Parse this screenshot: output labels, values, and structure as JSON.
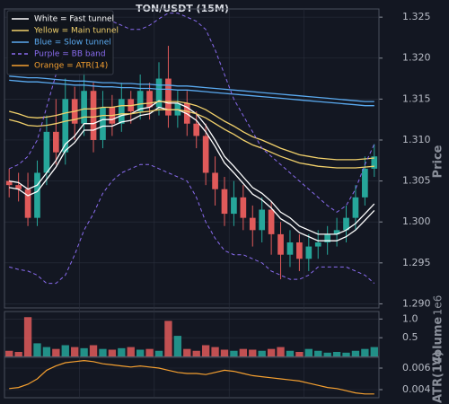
{
  "chart_data": [
    {
      "type": "candlestick",
      "title": "TON/USDT (15M)",
      "ylabel": "Price",
      "up_color": "#26a69a",
      "down_color": "#e05a5a",
      "ylim": [
        1.2895,
        1.326
      ],
      "yticks": [
        {
          "value": 1.29,
          "label": "1.290"
        },
        1.295,
        {
          "value": 1.3,
          "label": "1.300"
        },
        1.305,
        {
          "value": 1.31,
          "label": "1.310"
        },
        1.315,
        {
          "value": 1.32,
          "label": "1.320"
        },
        1.325
      ],
      "grid": true,
      "legend": "upper left",
      "open": [
        1.305,
        1.3045,
        1.304,
        1.3005,
        1.306,
        1.311,
        1.3085,
        1.315,
        1.312,
        1.316,
        1.31,
        1.314,
        1.312,
        1.315,
        1.3135,
        1.316,
        1.314,
        1.3175,
        1.313,
        1.3145,
        1.312,
        1.3105,
        1.306,
        1.304,
        1.301,
        1.303,
        1.3005,
        1.299,
        1.3015,
        1.2985,
        1.296,
        1.2975,
        1.2955,
        1.297,
        1.2975,
        1.2985,
        1.299,
        1.3005,
        1.303,
        1.3065
      ],
      "high": [
        1.3065,
        1.306,
        1.306,
        1.3075,
        1.313,
        1.315,
        1.3175,
        1.3165,
        1.3185,
        1.317,
        1.316,
        1.3155,
        1.317,
        1.316,
        1.318,
        1.317,
        1.3195,
        1.3215,
        1.316,
        1.316,
        1.3135,
        1.312,
        1.308,
        1.3055,
        1.305,
        1.3045,
        1.302,
        1.303,
        1.3025,
        1.3,
        1.299,
        1.2985,
        1.2985,
        1.299,
        1.2995,
        1.3005,
        1.302,
        1.3045,
        1.308,
        1.3095
      ],
      "low": [
        1.303,
        1.3025,
        1.2995,
        1.2995,
        1.3045,
        1.307,
        1.307,
        1.31,
        1.3105,
        1.3085,
        1.309,
        1.3105,
        1.311,
        1.312,
        1.3125,
        1.3125,
        1.313,
        1.3115,
        1.3115,
        1.3105,
        1.309,
        1.3045,
        1.302,
        1.2995,
        1.2995,
        1.299,
        1.297,
        1.2975,
        1.296,
        1.293,
        1.2945,
        1.294,
        1.294,
        1.2955,
        1.296,
        1.297,
        1.2975,
        1.299,
        1.302,
        1.3055
      ],
      "close": [
        1.3045,
        1.304,
        1.3005,
        1.306,
        1.311,
        1.3085,
        1.315,
        1.312,
        1.316,
        1.31,
        1.314,
        1.312,
        1.315,
        1.3135,
        1.316,
        1.314,
        1.3175,
        1.313,
        1.3145,
        1.312,
        1.3105,
        1.306,
        1.304,
        1.301,
        1.303,
        1.3005,
        1.299,
        1.3015,
        1.2985,
        1.296,
        1.2975,
        1.2955,
        1.297,
        1.2975,
        1.2985,
        1.299,
        1.3005,
        1.303,
        1.3065,
        1.308
      ],
      "series": [
        {
          "name": "White = Fast tunnel",
          "color": "#ffffff",
          "dashed": false,
          "upper": [
            1.305,
            1.3048,
            1.304,
            1.3045,
            1.306,
            1.3075,
            1.3095,
            1.3105,
            1.312,
            1.312,
            1.3125,
            1.3125,
            1.313,
            1.3132,
            1.3138,
            1.314,
            1.3148,
            1.3145,
            1.3145,
            1.314,
            1.3132,
            1.3118,
            1.31,
            1.308,
            1.3068,
            1.3055,
            1.3042,
            1.3035,
            1.3025,
            1.3012,
            1.3005,
            1.2995,
            1.299,
            1.2985,
            1.2985,
            1.2985,
            1.299,
            1.2998,
            1.301,
            1.3022
          ],
          "lower": [
            1.3042,
            1.304,
            1.3032,
            1.3037,
            1.3052,
            1.3067,
            1.3087,
            1.3097,
            1.3112,
            1.3112,
            1.3117,
            1.3117,
            1.3122,
            1.3124,
            1.313,
            1.3132,
            1.314,
            1.3137,
            1.3137,
            1.3132,
            1.3124,
            1.311,
            1.3092,
            1.3072,
            1.306,
            1.3047,
            1.3034,
            1.3027,
            1.3017,
            1.3004,
            1.2997,
            1.2987,
            1.2982,
            1.2977,
            1.2977,
            1.2977,
            1.2982,
            1.299,
            1.3002,
            1.3014
          ]
        },
        {
          "name": "Yellow = Main tunnel",
          "color": "#f2d16b",
          "dashed": false,
          "upper": [
            1.3135,
            1.3132,
            1.3128,
            1.3127,
            1.3128,
            1.313,
            1.3133,
            1.3135,
            1.3138,
            1.3138,
            1.314,
            1.314,
            1.3142,
            1.3142,
            1.3144,
            1.3145,
            1.3147,
            1.3147,
            1.3147,
            1.3145,
            1.3142,
            1.3137,
            1.313,
            1.3123,
            1.3117,
            1.311,
            1.3104,
            1.31,
            1.3095,
            1.309,
            1.3086,
            1.3082,
            1.308,
            1.3078,
            1.3077,
            1.3076,
            1.3076,
            1.3076,
            1.3077,
            1.3078
          ],
          "lower": [
            1.3125,
            1.3122,
            1.3118,
            1.3117,
            1.3118,
            1.312,
            1.3123,
            1.3125,
            1.3128,
            1.3128,
            1.313,
            1.313,
            1.3132,
            1.3132,
            1.3134,
            1.3135,
            1.3137,
            1.3137,
            1.3137,
            1.3135,
            1.3132,
            1.3127,
            1.312,
            1.3113,
            1.3107,
            1.31,
            1.3094,
            1.309,
            1.3085,
            1.308,
            1.3076,
            1.3072,
            1.307,
            1.3068,
            1.3067,
            1.3066,
            1.3066,
            1.3066,
            1.3067,
            1.3068
          ]
        },
        {
          "name": "Blue = Slow tunnel",
          "color": "#5aaaf0",
          "dashed": false,
          "upper": [
            1.3178,
            1.3177,
            1.3176,
            1.3176,
            1.3175,
            1.3174,
            1.3173,
            1.3172,
            1.3172,
            1.3171,
            1.317,
            1.317,
            1.3169,
            1.3169,
            1.3168,
            1.3168,
            1.3167,
            1.3167,
            1.3166,
            1.3166,
            1.3165,
            1.3164,
            1.3163,
            1.3162,
            1.3161,
            1.316,
            1.3159,
            1.3158,
            1.3157,
            1.3156,
            1.3155,
            1.3154,
            1.3153,
            1.3152,
            1.3151,
            1.315,
            1.3149,
            1.3148,
            1.3147,
            1.3147
          ],
          "lower": [
            1.3173,
            1.3172,
            1.3171,
            1.3171,
            1.317,
            1.3169,
            1.3168,
            1.3167,
            1.3167,
            1.3166,
            1.3165,
            1.3165,
            1.3164,
            1.3164,
            1.3163,
            1.3163,
            1.3162,
            1.3162,
            1.3161,
            1.3161,
            1.316,
            1.3159,
            1.3158,
            1.3157,
            1.3156,
            1.3155,
            1.3154,
            1.3153,
            1.3152,
            1.3151,
            1.315,
            1.3149,
            1.3148,
            1.3147,
            1.3146,
            1.3145,
            1.3144,
            1.3143,
            1.3142,
            1.3142
          ]
        },
        {
          "name": "Purple = BB band",
          "color": "#8a6cf0",
          "dashed": true,
          "upper": [
            1.3065,
            1.307,
            1.308,
            1.31,
            1.314,
            1.318,
            1.321,
            1.3225,
            1.3235,
            1.324,
            1.3245,
            1.3245,
            1.324,
            1.3235,
            1.3235,
            1.324,
            1.3248,
            1.3255,
            1.3255,
            1.325,
            1.3245,
            1.3235,
            1.321,
            1.318,
            1.315,
            1.313,
            1.311,
            1.309,
            1.308,
            1.307,
            1.306,
            1.305,
            1.304,
            1.303,
            1.302,
            1.3012,
            1.302,
            1.304,
            1.307,
            1.3095
          ],
          "lower": [
            1.2945,
            1.2942,
            1.294,
            1.2935,
            1.2925,
            1.2925,
            1.2935,
            1.296,
            1.299,
            1.301,
            1.3035,
            1.305,
            1.306,
            1.3065,
            1.307,
            1.307,
            1.3065,
            1.306,
            1.3055,
            1.305,
            1.303,
            1.3,
            1.298,
            1.2965,
            1.296,
            1.296,
            1.2955,
            1.295,
            1.294,
            1.2935,
            1.293,
            1.293,
            1.2935,
            1.2945,
            1.2945,
            1.2945,
            1.2945,
            1.294,
            1.2935,
            1.2925
          ]
        }
      ]
    },
    {
      "type": "bar",
      "ylabel": "Volume",
      "scale_label": "1e6",
      "ylim": [
        0,
        1.2
      ],
      "yticks": [
        0.5,
        {
          "value": 1,
          "label": "1.0"
        }
      ],
      "values": [
        0.15,
        0.12,
        1.05,
        0.35,
        0.25,
        0.2,
        0.3,
        0.25,
        0.22,
        0.3,
        0.2,
        0.18,
        0.22,
        0.25,
        0.18,
        0.2,
        0.15,
        0.95,
        0.55,
        0.2,
        0.15,
        0.3,
        0.25,
        0.18,
        0.15,
        0.2,
        0.18,
        0.15,
        0.2,
        0.25,
        0.15,
        0.12,
        0.2,
        0.15,
        0.1,
        0.12,
        0.1,
        0.15,
        0.2,
        0.25
      ]
    },
    {
      "type": "line",
      "ylabel": "ATR(14)",
      "ylim": [
        0.00325,
        0.007
      ],
      "yticks": [
        0.004,
        0.006
      ],
      "series": [
        {
          "name": "Orange = ATR(14)",
          "color": "#f5a030",
          "values": [
            0.0041,
            0.0042,
            0.0045,
            0.005,
            0.0058,
            0.0062,
            0.0065,
            0.0066,
            0.0067,
            0.0066,
            0.0064,
            0.0063,
            0.0062,
            0.0061,
            0.0062,
            0.0061,
            0.006,
            0.0058,
            0.0056,
            0.0055,
            0.0055,
            0.0054,
            0.0056,
            0.0058,
            0.0057,
            0.0055,
            0.0053,
            0.0052,
            0.0051,
            0.005,
            0.0049,
            0.0048,
            0.0046,
            0.0044,
            0.0042,
            0.0041,
            0.0039,
            0.0037,
            0.0036,
            0.0036
          ]
        }
      ]
    }
  ]
}
